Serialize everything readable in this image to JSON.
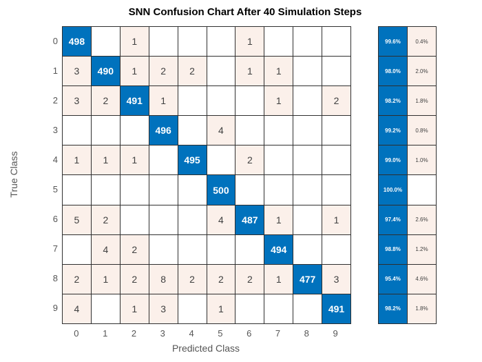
{
  "chart_data": {
    "type": "heatmap",
    "subtype": "confusion-matrix",
    "title": "SNN Confusion Chart After 40 Simulation Steps",
    "xlabel": "Predicted Class",
    "ylabel": "True Class",
    "classes": [
      "0",
      "1",
      "2",
      "3",
      "4",
      "5",
      "6",
      "7",
      "8",
      "9"
    ],
    "matrix": [
      [
        498,
        0,
        1,
        0,
        0,
        0,
        1,
        0,
        0,
        0
      ],
      [
        3,
        490,
        1,
        2,
        2,
        0,
        1,
        1,
        0,
        0
      ],
      [
        3,
        2,
        491,
        1,
        0,
        0,
        0,
        1,
        0,
        2
      ],
      [
        0,
        0,
        0,
        496,
        0,
        4,
        0,
        0,
        0,
        0
      ],
      [
        1,
        1,
        1,
        0,
        495,
        0,
        2,
        0,
        0,
        0
      ],
      [
        0,
        0,
        0,
        0,
        0,
        500,
        0,
        0,
        0,
        0
      ],
      [
        5,
        2,
        0,
        0,
        0,
        4,
        487,
        1,
        0,
        1
      ],
      [
        0,
        4,
        2,
        0,
        0,
        0,
        0,
        494,
        0,
        0
      ],
      [
        2,
        1,
        2,
        8,
        2,
        2,
        2,
        1,
        477,
        3
      ],
      [
        4,
        0,
        1,
        3,
        0,
        1,
        0,
        0,
        0,
        491
      ]
    ],
    "row_summary": [
      {
        "correct": "99.6%",
        "incorrect": "0.4%"
      },
      {
        "correct": "98.0%",
        "incorrect": "2.0%"
      },
      {
        "correct": "98.2%",
        "incorrect": "1.8%"
      },
      {
        "correct": "99.2%",
        "incorrect": "0.8%"
      },
      {
        "correct": "99.0%",
        "incorrect": "1.0%"
      },
      {
        "correct": "100.0%",
        "incorrect": ""
      },
      {
        "correct": "97.4%",
        "incorrect": "2.6%"
      },
      {
        "correct": "98.8%",
        "incorrect": "1.2%"
      },
      {
        "correct": "95.4%",
        "incorrect": "4.6%"
      },
      {
        "correct": "98.2%",
        "incorrect": "1.8%"
      }
    ],
    "layout": {
      "legend": "none",
      "grid": "on",
      "row_summary_position": "right"
    },
    "colors": {
      "diagonal": "#0072bd",
      "off_diagonal_tint": "#fbf0ea",
      "empty": "#ffffff",
      "grid_line": "#2e2e2e",
      "diagonal_text": "#ffffff",
      "cell_text": "#3f3f3f",
      "axis_text": "#555555",
      "title_text": "#000000"
    }
  }
}
